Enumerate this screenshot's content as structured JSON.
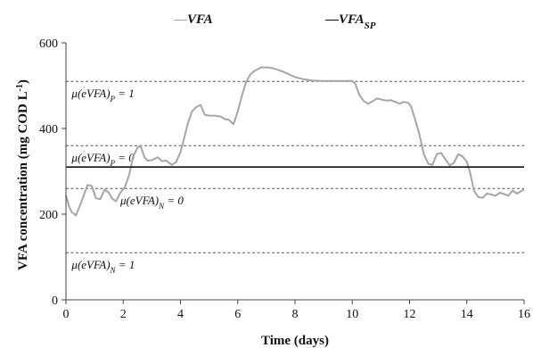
{
  "chart_data": {
    "type": "line",
    "title": "",
    "xlabel": "Time (days)",
    "ylabel": "VFA concentration  (mg COD L",
    "ylabel_sup": "-1",
    "ylabel_tail": ")",
    "xlim": [
      0,
      16
    ],
    "ylim": [
      0,
      600
    ],
    "xticks": [
      0,
      2,
      4,
      6,
      8,
      10,
      12,
      14,
      16
    ],
    "yticks": [
      0,
      200,
      400,
      600
    ],
    "grid": false,
    "legend_position": "top",
    "legend": [
      {
        "dash": "—",
        "name": "VFA",
        "sub": "",
        "color": "#a6a6a6"
      },
      {
        "dash": "—",
        "name": "VFA",
        "sub": "SP",
        "color": "#111111"
      }
    ],
    "series": [
      {
        "name": "VFA",
        "color": "#a6a6a6",
        "x": [
          0,
          0.1,
          0.2,
          0.35,
          0.5,
          0.6,
          0.75,
          0.9,
          1.05,
          1.2,
          1.35,
          1.5,
          1.6,
          1.75,
          1.9,
          2.05,
          2.2,
          2.35,
          2.5,
          2.6,
          2.75,
          2.85,
          3.0,
          3.2,
          3.35,
          3.5,
          3.7,
          3.85,
          4.0,
          4.1,
          4.25,
          4.4,
          4.55,
          4.7,
          4.85,
          5.0,
          5.2,
          5.4,
          5.55,
          5.7,
          5.85,
          6.0,
          6.15,
          6.3,
          6.45,
          6.6,
          6.8,
          7.0,
          7.2,
          7.4,
          7.6,
          7.8,
          8.0,
          8.3,
          8.6,
          9.0,
          9.5,
          10.0,
          10.1,
          10.25,
          10.4,
          10.55,
          10.7,
          10.85,
          11.0,
          11.2,
          11.35,
          11.5,
          11.65,
          11.8,
          11.95,
          12.05,
          12.2,
          12.35,
          12.5,
          12.65,
          12.8,
          12.95,
          13.1,
          13.25,
          13.4,
          13.55,
          13.7,
          13.85,
          14.0,
          14.1,
          14.25,
          14.4,
          14.55,
          14.7,
          14.85,
          15.0,
          15.15,
          15.3,
          15.45,
          15.6,
          15.75,
          15.9,
          16.0
        ],
        "values": [
          244,
          220,
          205,
          197,
          222,
          240,
          268,
          266,
          237,
          235,
          257,
          250,
          237,
          230,
          250,
          262,
          290,
          335,
          355,
          360,
          332,
          325,
          326,
          333,
          324,
          325,
          315,
          322,
          345,
          370,
          410,
          440,
          450,
          455,
          432,
          430,
          430,
          428,
          422,
          420,
          410,
          440,
          478,
          510,
          527,
          535,
          542,
          543,
          541,
          537,
          532,
          526,
          520,
          515,
          512,
          511,
          511,
          511,
          505,
          478,
          464,
          458,
          463,
          470,
          468,
          465,
          466,
          462,
          458,
          462,
          460,
          452,
          420,
          385,
          340,
          318,
          315,
          340,
          343,
          328,
          314,
          320,
          340,
          335,
          322,
          300,
          255,
          240,
          238,
          248,
          246,
          243,
          250,
          247,
          243,
          255,
          248,
          254,
          257
        ]
      },
      {
        "name": "VFA SP",
        "color": "#111111",
        "x": [
          0,
          16
        ],
        "values": [
          310,
          310
        ]
      }
    ],
    "reference_lines": [
      {
        "y": 510,
        "label_main": "μ(eVFA)",
        "label_sub": "P",
        "label_tail": " = 1",
        "label_x": 0.2
      },
      {
        "y": 360,
        "label_main": "μ(eVFA)",
        "label_sub": "P",
        "label_tail": " = 0",
        "label_x": 0.2
      },
      {
        "y": 260,
        "label_main": "μ(eVFA)",
        "label_sub": "N",
        "label_tail": " = 0",
        "label_x": 1.9
      },
      {
        "y": 110,
        "label_main": "μ(eVFA)",
        "label_sub": "N",
        "label_tail": " = 1",
        "label_x": 0.2
      }
    ]
  }
}
